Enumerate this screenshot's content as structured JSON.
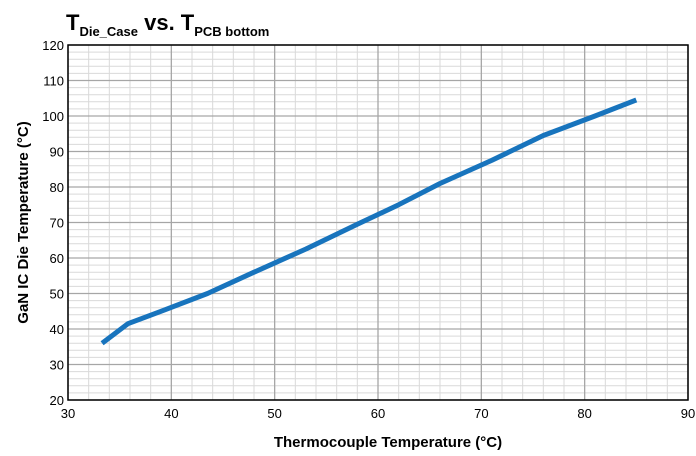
{
  "chart_data": {
    "type": "line",
    "title": {
      "parts": [
        {
          "text": "T",
          "sub": false
        },
        {
          "text": "Die_Case",
          "sub": true
        },
        {
          "text": " vs. T",
          "sub": false
        },
        {
          "text": "PCB bottom",
          "sub": true
        }
      ]
    },
    "xlabel": "Thermocouple Temperature (°C)",
    "ylabel": "GaN IC Die Temperature (°C)",
    "xlim": [
      30,
      90
    ],
    "ylim": [
      20,
      120
    ],
    "x_ticks": [
      30,
      40,
      50,
      60,
      70,
      80,
      90
    ],
    "y_ticks": [
      20,
      30,
      40,
      50,
      60,
      70,
      80,
      90,
      100,
      110,
      120
    ],
    "grid": true,
    "line_color": "#1874bd",
    "series": [
      {
        "x": [
          33.3,
          35.8,
          39.0,
          43.5,
          48.0,
          53.0,
          58.0,
          62.0,
          66.0,
          71.0,
          76.0,
          81.0,
          85.0
        ],
        "y": [
          36.0,
          41.5,
          45.0,
          50.0,
          56.0,
          62.5,
          69.5,
          75.0,
          81.0,
          87.5,
          94.5,
          100.0,
          104.5
        ]
      }
    ]
  }
}
